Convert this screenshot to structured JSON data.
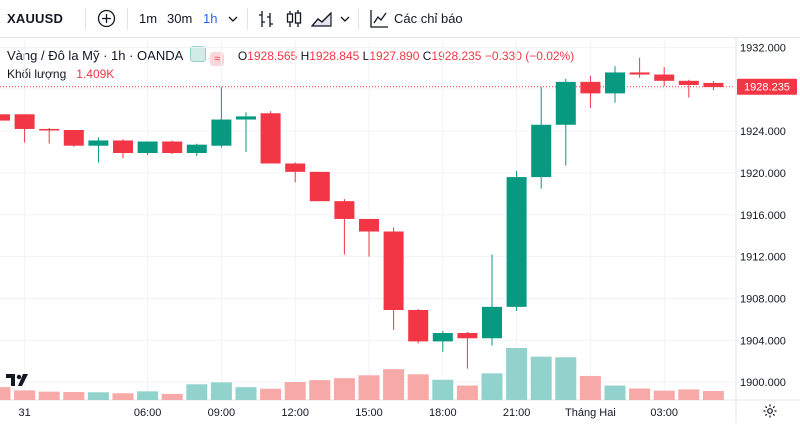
{
  "toolbar": {
    "symbol": "XAUUSD",
    "intervals": [
      "1m",
      "30m",
      "1h"
    ],
    "active_interval": "1h",
    "indicators_label": "Các chỉ báo",
    "icons": [
      "plus-circle-icon",
      "chevron-down-icon",
      "bar-chart-icon",
      "candles-icon",
      "area-chart-icon",
      "chevron-down-icon",
      "indicators-icon"
    ]
  },
  "legend": {
    "title": "Vàng / Đô la Mỹ · 1h · OANDA",
    "o_key": "O",
    "o": "1928.565",
    "h_key": "H",
    "h": "1928.845",
    "l_key": "L",
    "l": "1927.890",
    "c_key": "C",
    "c": "1928.235",
    "change": "−0.330 (−0.02%)",
    "volume_label": "Khối lượng",
    "volume_value": "1.409K"
  },
  "chart_data": {
    "type": "candlestick",
    "current_price": "1928.235",
    "y_ticks": [
      "1900.000",
      "1904.000",
      "1908.000",
      "1912.000",
      "1916.000",
      "1920.000",
      "1924.000",
      "1928.000",
      "1932.000"
    ],
    "ylim": [
      1898.3,
      1932.7
    ],
    "x_ticks": [
      {
        "label": "31",
        "index": 1
      },
      {
        "label": "06:00",
        "index": 6
      },
      {
        "label": "09:00",
        "index": 9
      },
      {
        "label": "12:00",
        "index": 12
      },
      {
        "label": "15:00",
        "index": 15
      },
      {
        "label": "18:00",
        "index": 18
      },
      {
        "label": "21:00",
        "index": 21
      },
      {
        "label": "Tháng Hai",
        "index": 24
      },
      {
        "label": "03:00",
        "index": 27
      }
    ],
    "candles": [
      {
        "o": 1925.6,
        "h": 1925.6,
        "l": 1925.0,
        "c": 1925.0,
        "v": 40
      },
      {
        "o": 1925.6,
        "h": 1925.6,
        "l": 1922.9,
        "c": 1924.2,
        "v": 30
      },
      {
        "o": 1924.2,
        "h": 1924.3,
        "l": 1922.8,
        "c": 1924.1,
        "v": 26
      },
      {
        "o": 1924.1,
        "h": 1924.1,
        "l": 1922.5,
        "c": 1922.6,
        "v": 25
      },
      {
        "o": 1922.6,
        "h": 1923.4,
        "l": 1921.0,
        "c": 1923.1,
        "v": 24
      },
      {
        "o": 1923.1,
        "h": 1923.2,
        "l": 1921.4,
        "c": 1921.9,
        "v": 21
      },
      {
        "o": 1921.9,
        "h": 1923.0,
        "l": 1921.7,
        "c": 1923.0,
        "v": 27
      },
      {
        "o": 1923.0,
        "h": 1923.1,
        "l": 1921.8,
        "c": 1921.9,
        "v": 19
      },
      {
        "o": 1921.9,
        "h": 1922.8,
        "l": 1921.6,
        "c": 1922.7,
        "v": 49
      },
      {
        "o": 1922.6,
        "h": 1928.2,
        "l": 1922.4,
        "c": 1925.1,
        "v": 55
      },
      {
        "o": 1925.1,
        "h": 1925.8,
        "l": 1922.0,
        "c": 1925.4,
        "v": 40
      },
      {
        "o": 1925.7,
        "h": 1925.9,
        "l": 1920.9,
        "c": 1920.9,
        "v": 35
      },
      {
        "o": 1920.9,
        "h": 1921.0,
        "l": 1919.1,
        "c": 1920.1,
        "v": 56
      },
      {
        "o": 1920.1,
        "h": 1920.1,
        "l": 1917.3,
        "c": 1917.3,
        "v": 62
      },
      {
        "o": 1917.3,
        "h": 1917.5,
        "l": 1912.2,
        "c": 1915.6,
        "v": 68
      },
      {
        "o": 1915.6,
        "h": 1915.6,
        "l": 1912.0,
        "c": 1914.4,
        "v": 77
      },
      {
        "o": 1914.4,
        "h": 1914.8,
        "l": 1905.0,
        "c": 1906.9,
        "v": 96
      },
      {
        "o": 1906.9,
        "h": 1907.0,
        "l": 1903.7,
        "c": 1903.9,
        "v": 80
      },
      {
        "o": 1903.9,
        "h": 1904.9,
        "l": 1902.9,
        "c": 1904.7,
        "v": 63
      },
      {
        "o": 1904.7,
        "h": 1904.8,
        "l": 1901.3,
        "c": 1904.2,
        "v": 45
      },
      {
        "o": 1904.2,
        "h": 1912.2,
        "l": 1903.5,
        "c": 1907.2,
        "v": 83
      },
      {
        "o": 1907.2,
        "h": 1920.2,
        "l": 1906.8,
        "c": 1919.6,
        "v": 162
      },
      {
        "o": 1919.6,
        "h": 1928.2,
        "l": 1918.5,
        "c": 1924.6,
        "v": 135
      },
      {
        "o": 1924.6,
        "h": 1929.0,
        "l": 1920.7,
        "c": 1928.7,
        "v": 133
      },
      {
        "o": 1928.7,
        "h": 1929.3,
        "l": 1926.2,
        "c": 1927.6,
        "v": 75
      },
      {
        "o": 1927.6,
        "h": 1930.2,
        "l": 1926.7,
        "c": 1929.6,
        "v": 45
      },
      {
        "o": 1929.6,
        "h": 1931.0,
        "l": 1929.1,
        "c": 1929.4,
        "v": 36
      },
      {
        "o": 1929.4,
        "h": 1930.1,
        "l": 1928.3,
        "c": 1928.8,
        "v": 29
      },
      {
        "o": 1928.8,
        "h": 1928.9,
        "l": 1927.2,
        "c": 1928.4,
        "v": 33
      },
      {
        "o": 1928.6,
        "h": 1928.8,
        "l": 1927.9,
        "c": 1928.2,
        "v": 28
      }
    ],
    "colors": {
      "up": "#089981",
      "down": "#f23645",
      "vol_up": "#92d2cc",
      "vol_down": "#f7a9a7",
      "grid": "#f0f3fa",
      "axis_text": "#131722"
    }
  }
}
